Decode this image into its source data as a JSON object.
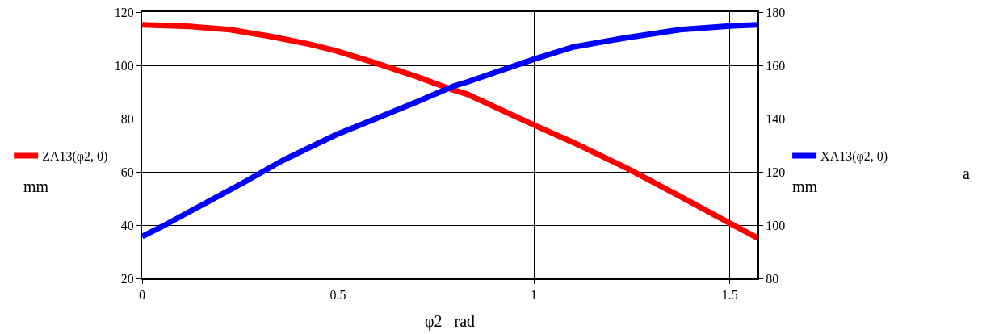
{
  "chart_data": {
    "type": "line",
    "xlabel": "φ2   rad",
    "ylabel": "mm",
    "y2label": "mm",
    "annotations": [
      "a"
    ],
    "xlim": [
      0,
      1.5708
    ],
    "xticks": [
      0,
      0.5,
      1,
      1.5
    ],
    "ylim": [
      20,
      120
    ],
    "yticks": [
      20,
      40,
      60,
      80,
      100,
      120
    ],
    "y2lim": [
      80,
      180
    ],
    "y2ticks": [
      80,
      100,
      120,
      140,
      160,
      180
    ],
    "grid": true,
    "legend": "left",
    "marker": "none",
    "line_style": "solid",
    "series": [
      {
        "name": "ZA13(φ2, 0)",
        "color": "#ff0000",
        "x": [
          0,
          0.122,
          0.224,
          0.326,
          0.428,
          0.496,
          0.598,
          0.7,
          0.795,
          0.829,
          1.0,
          1.101,
          1.237,
          1.373,
          1.5,
          1.5708
        ],
        "values": [
          115.2,
          114.6,
          113.4,
          110.9,
          107.9,
          105.4,
          100.8,
          95.8,
          90.7,
          89.2,
          77.6,
          71.0,
          61.4,
          50.8,
          40.7,
          35.2
        ]
      },
      {
        "name": "XA13(φ2, 0)",
        "color": "#0000ff",
        "axis": "y2",
        "x": [
          0,
          0.054,
          0.156,
          0.258,
          0.36,
          0.496,
          0.598,
          0.7,
          0.795,
          0.829,
          1.0,
          1.101,
          1.237,
          1.373,
          1.5,
          1.5708
        ],
        "values": [
          95.7,
          99.7,
          107.8,
          115.9,
          124.4,
          134.0,
          140.1,
          146.2,
          152.2,
          153.7,
          162.3,
          166.9,
          170.4,
          173.4,
          174.8,
          175.2
        ]
      }
    ]
  }
}
